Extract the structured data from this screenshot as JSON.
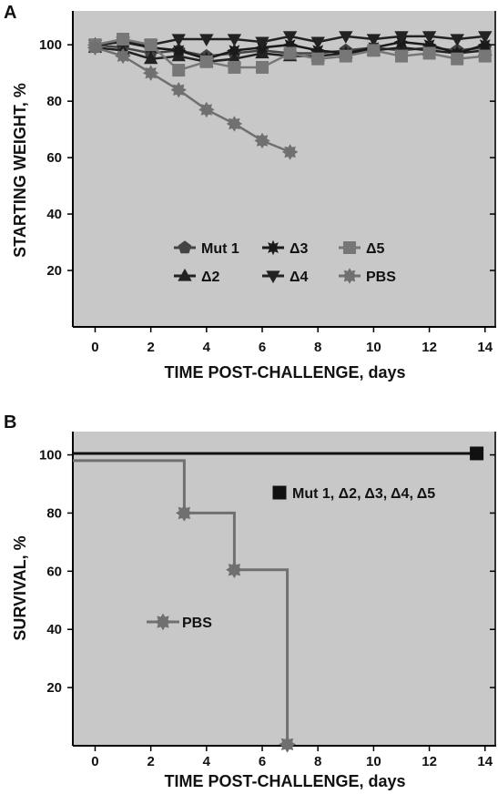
{
  "chart_data": [
    {
      "panel_label": "A",
      "type": "line",
      "xlabel": "TIME POST-CHALLENGE, days",
      "ylabel": "STARTING WEIGHT, %",
      "xlim": [
        -0.8,
        14.4
      ],
      "ylim": [
        0,
        112
      ],
      "xticks": [
        0,
        2,
        4,
        6,
        8,
        10,
        12,
        14
      ],
      "yticks": [
        20,
        40,
        60,
        80,
        100
      ],
      "grid": false,
      "legend_position": "lower-center",
      "series": [
        {
          "name": "Mut 1",
          "marker": "pentagon",
          "color": "#444444",
          "x": [
            0,
            1,
            2,
            3,
            4,
            5,
            6,
            7,
            8,
            9,
            10,
            11,
            12,
            13,
            14
          ],
          "y": [
            100,
            99,
            97,
            98,
            96,
            97,
            98,
            97,
            97,
            98,
            99,
            98,
            99,
            98,
            99
          ]
        },
        {
          "name": "Δ2",
          "marker": "triangle-up",
          "color": "#222222",
          "x": [
            0,
            1,
            2,
            3,
            4,
            5,
            6,
            7,
            8,
            9,
            10,
            11,
            12,
            13,
            14
          ],
          "y": [
            99,
            98,
            95,
            96,
            94,
            95,
            97,
            96,
            96,
            97,
            98,
            99,
            98,
            97,
            98
          ]
        },
        {
          "name": "Δ3",
          "marker": "star",
          "color": "#1a1a1a",
          "x": [
            0,
            1,
            2,
            3,
            4,
            5,
            6,
            7,
            8,
            9,
            10,
            11,
            12,
            13,
            14
          ],
          "y": [
            100,
            101,
            99,
            98,
            95,
            98,
            99,
            100,
            98,
            97,
            99,
            101,
            100,
            97,
            100
          ]
        },
        {
          "name": "Δ4",
          "marker": "triangle-down",
          "color": "#222222",
          "x": [
            0,
            1,
            2,
            3,
            4,
            5,
            6,
            7,
            8,
            9,
            10,
            11,
            12,
            13,
            14
          ],
          "y": [
            100,
            101,
            100,
            102,
            102,
            102,
            101,
            103,
            101,
            103,
            102,
            103,
            103,
            102,
            103
          ]
        },
        {
          "name": "Δ5",
          "marker": "square",
          "color": "#777777",
          "x": [
            0,
            1,
            2,
            3,
            4,
            5,
            6,
            7,
            8,
            9,
            10,
            11,
            12,
            13,
            14
          ],
          "y": [
            100,
            102,
            100,
            91,
            94,
            92,
            92,
            97,
            95,
            96,
            98,
            96,
            97,
            95,
            96
          ]
        },
        {
          "name": "PBS",
          "marker": "cross",
          "color": "#707070",
          "x": [
            0,
            1,
            2,
            3,
            4,
            5,
            6,
            7
          ],
          "y": [
            99,
            96,
            90,
            84,
            77,
            72,
            66,
            62
          ]
        }
      ]
    },
    {
      "panel_label": "B",
      "type": "line",
      "xlabel": "TIME POST-CHALLENGE, days",
      "ylabel": "SURVIVAL, %",
      "xlim": [
        -0.8,
        14.4
      ],
      "ylim": [
        0,
        108
      ],
      "xticks": [
        0,
        2,
        4,
        6,
        8,
        10,
        12,
        14
      ],
      "yticks": [
        20,
        40,
        60,
        80,
        100
      ],
      "grid": false,
      "series": [
        {
          "name": "Mut 1, Δ2, Δ3, Δ4, Δ5",
          "step": true,
          "color": "#111111",
          "x": [
            -0.8,
            13.7
          ],
          "y": [
            100.5,
            100.5
          ],
          "marker_x": [
            13.7
          ],
          "marker_y": [
            100.5
          ],
          "marker": "square"
        },
        {
          "name": "PBS",
          "step": true,
          "color": "#707070",
          "x": [
            -0.8,
            3.2,
            3.2,
            5.0,
            5.0,
            6.9,
            6.9
          ],
          "y": [
            98,
            98,
            80,
            80,
            60.5,
            60.5,
            0.5
          ],
          "marker_x": [
            3.2,
            5.0,
            6.9
          ],
          "marker_y": [
            80,
            60.5,
            0.5
          ],
          "marker": "cross"
        }
      ]
    }
  ]
}
